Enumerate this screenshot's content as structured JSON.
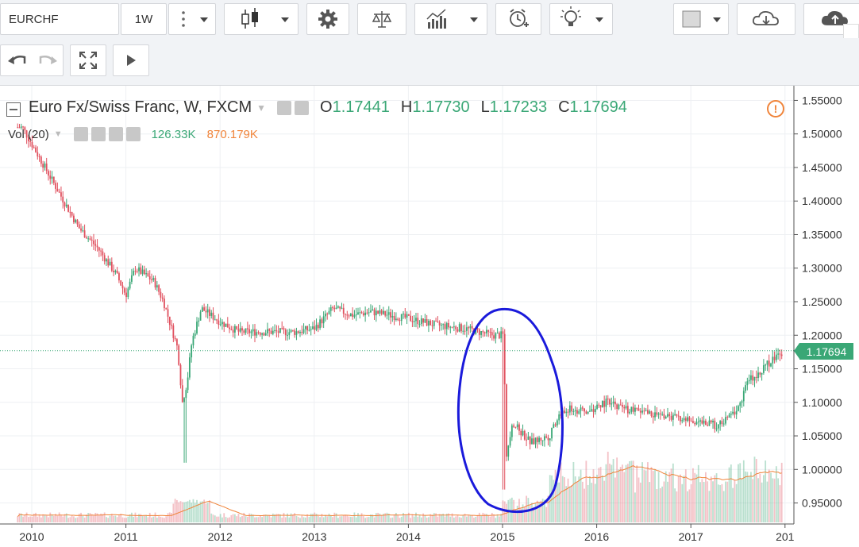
{
  "toolbar": {
    "symbol": "EURCHF",
    "interval": "1W",
    "icons": [
      "more-vertical-icon",
      "candles-icon",
      "settings-icon",
      "compare-scale-icon",
      "indicators-icon",
      "alert-icon",
      "idea-bulb-icon",
      "color-square-icon",
      "cloud-download-icon",
      "cloud-upload-icon"
    ]
  },
  "secondary_toolbar": {
    "icons": [
      "undo-icon",
      "redo-icon",
      "fullscreen-icon",
      "play-icon"
    ]
  },
  "legend": {
    "title": "Euro Fx/Swiss Franc, W, FXCM",
    "o_label": "O",
    "o_value": "1.17441",
    "h_label": "H",
    "h_value": "1.17730",
    "l_label": "L",
    "l_value": "1.17233",
    "c_label": "C",
    "c_value": "1.17694",
    "vol_label": "Vol (20)",
    "vol_value": "126.33K",
    "vol_ma_value": "870.179K",
    "warning": "!"
  },
  "price_axis": {
    "ticks": [
      "1.55000",
      "1.50000",
      "1.45000",
      "1.40000",
      "1.35000",
      "1.30000",
      "1.25000",
      "1.20000",
      "1.15000",
      "1.10000",
      "1.05000",
      "1.00000",
      "0.95000"
    ],
    "last_price": "1.17694"
  },
  "time_axis": {
    "ticks": [
      "2010",
      "2011",
      "2012",
      "2013",
      "2014",
      "2015",
      "2016",
      "2017",
      "201"
    ]
  },
  "colors": {
    "up": "#3aa776",
    "down": "#e0505e",
    "volume_ma": "#f0843a",
    "annotation": "#1a1adb",
    "last_price_line": "#3aa776"
  },
  "chart_data": {
    "type": "line",
    "x": [
      2009.9,
      2010.1,
      2010.3,
      2010.5,
      2010.7,
      2010.9,
      2011.0,
      2011.1,
      2011.3,
      2011.4,
      2011.55,
      2011.6,
      2011.65,
      2011.7,
      2011.8,
      2011.9,
      2012.0,
      2012.2,
      2012.5,
      2012.8,
      2013.0,
      2013.2,
      2013.4,
      2013.6,
      2013.8,
      2014.0,
      2014.3,
      2014.6,
      2014.9,
      2015.01,
      2015.04,
      2015.1,
      2015.3,
      2015.5,
      2015.6,
      2015.7,
      2015.9,
      2016.1,
      2016.3,
      2016.5,
      2016.7,
      2016.9,
      2017.1,
      2017.3,
      2017.5,
      2017.6,
      2017.8,
      2017.95
    ],
    "series": [
      {
        "values": [
          1.51,
          1.46,
          1.41,
          1.36,
          1.33,
          1.29,
          1.26,
          1.3,
          1.28,
          1.25,
          1.18,
          1.1,
          1.13,
          1.19,
          1.24,
          1.23,
          1.22,
          1.205,
          1.205,
          1.205,
          1.21,
          1.24,
          1.23,
          1.235,
          1.23,
          1.225,
          1.215,
          1.21,
          1.2,
          1.2,
          1.02,
          1.07,
          1.04,
          1.05,
          1.08,
          1.09,
          1.085,
          1.1,
          1.09,
          1.085,
          1.08,
          1.075,
          1.07,
          1.065,
          1.09,
          1.13,
          1.155,
          1.175
        ]
      }
    ],
    "ylim": [
      0.94,
      1.56
    ],
    "xlim": [
      2009.85,
      2018.0
    ]
  }
}
